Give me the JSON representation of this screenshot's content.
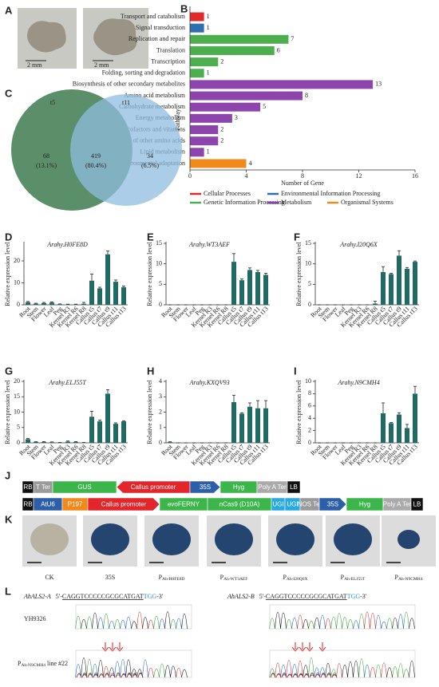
{
  "panel_labels": [
    "A",
    "B",
    "C",
    "D",
    "E",
    "F",
    "G",
    "H",
    "I",
    "J",
    "K",
    "L"
  ],
  "panel_a": {
    "scale_bars": [
      "2 mm",
      "2 mm"
    ]
  },
  "chart_data": [
    {
      "type": "hbar",
      "x_label": "Number of Gene",
      "y_label": "Pathway",
      "categories": [
        "Transport and catabolism",
        "Signal transduction",
        "Replication and repair",
        "Translation",
        "Transcription",
        "Folding, sorting and degradation",
        "Biosynthesis of other secondary metabolites",
        "Amino acid metabolism",
        "Carbohydrate metabolism",
        "Energy metabolism",
        "Metabolism of cofactors and vitamins",
        "Metabolism of other amino acids",
        "Lipid metabolism",
        "Environmental adaptation"
      ],
      "series": [
        {
          "name": "Cellular Processes",
          "color": "#e02a2a",
          "values": [
            1,
            null,
            null,
            null,
            null,
            null,
            null,
            null,
            null,
            null,
            null,
            null,
            null,
            null
          ]
        },
        {
          "name": "Environmental Information Processing",
          "color": "#2e6fad",
          "values": [
            null,
            1,
            null,
            null,
            null,
            null,
            null,
            null,
            null,
            null,
            null,
            null,
            null,
            null
          ]
        },
        {
          "name": "Genetic Information Processing",
          "color": "#4cae4c",
          "values": [
            null,
            null,
            7,
            6,
            2,
            1,
            null,
            null,
            null,
            null,
            null,
            null,
            null,
            null
          ]
        },
        {
          "name": "Metabolism",
          "color": "#8e44ad",
          "values": [
            null,
            null,
            null,
            null,
            null,
            null,
            13,
            8,
            5,
            3,
            2,
            2,
            1,
            null
          ]
        },
        {
          "name": "Organismal Systems",
          "color": "#f08a1c",
          "values": [
            null,
            null,
            null,
            null,
            null,
            null,
            null,
            null,
            null,
            null,
            null,
            null,
            null,
            4
          ]
        }
      ],
      "xlim": [
        0,
        16
      ],
      "xticks": [
        0,
        4,
        8,
        12,
        16
      ]
    },
    {
      "type": "venn",
      "sets": [
        "t5",
        "t11"
      ],
      "counts": [
        68,
        419,
        34
      ],
      "percentage_labels": [
        "(13.1%)",
        "(80.4%)",
        "(6.5%)"
      ],
      "colors": [
        "#5b8f6a",
        "#8fbce0"
      ]
    },
    {
      "type": "bar",
      "title": "Arahy.H0FE8D",
      "y_label": "Relative expression level",
      "color": "#1f6b64",
      "categories": [
        "Root",
        "Stem",
        "Flower",
        "Leaf",
        "Peg",
        "Kernel R3",
        "Kernel R6",
        "Kernel R8",
        "Callus t5",
        "Callus t7",
        "Callus t9",
        "Callus t11",
        "Callus t13"
      ],
      "values": [
        1.2,
        0.5,
        0.8,
        1.0,
        0.3,
        0.2,
        0.2,
        0.5,
        11,
        7.5,
        23,
        10.5,
        8
      ],
      "errors": [
        0.3,
        0.2,
        0.3,
        0.3,
        0.1,
        0.1,
        0.1,
        0.6,
        3,
        0.5,
        1.5,
        0.8,
        0.5
      ],
      "ylim": [
        0,
        28
      ],
      "yticks": [
        0,
        10,
        20
      ]
    },
    {
      "type": "bar",
      "title": "Arahy.WT3AEF",
      "y_label": "Relative expression level",
      "color": "#1f6b64",
      "categories": [
        "Root",
        "Stem",
        "Flower",
        "Leaf",
        "Peg",
        "Kernel R3",
        "Kernel R6",
        "Kernel R8",
        "Callus t5",
        "Callus t7",
        "Callus t9",
        "Callus t11",
        "Callus t13"
      ],
      "values": [
        0,
        0,
        0,
        0,
        0,
        0,
        0,
        0,
        10.5,
        6,
        8.5,
        8,
        7.3
      ],
      "errors": [
        0,
        0,
        0,
        0,
        0,
        0,
        0,
        0,
        2,
        0.3,
        0.5,
        0.4,
        0.4
      ],
      "ylim": [
        0,
        15
      ],
      "yticks": [
        0,
        5,
        10,
        15
      ]
    },
    {
      "type": "bar",
      "title": "Arahy.I20Q6X",
      "y_label": "Relative expression level",
      "color": "#1f6b64",
      "categories": [
        "Root",
        "Stem",
        "Flower",
        "Leaf",
        "Peg",
        "Kernel R3",
        "Kernel R6",
        "Kernel R8",
        "Callus t5",
        "Callus t7",
        "Callus t9",
        "Callus t11",
        "Callus t13"
      ],
      "values": [
        0,
        0,
        0,
        0,
        0,
        0,
        0,
        0.3,
        8,
        7.5,
        12,
        8.8,
        10.5
      ],
      "errors": [
        0,
        0,
        0,
        0,
        0,
        0,
        0,
        0.6,
        1.3,
        0.2,
        1.2,
        0.3,
        0.2
      ],
      "ylim": [
        0,
        15
      ],
      "yticks": [
        0,
        5,
        10,
        15
      ]
    },
    {
      "type": "bar",
      "title": "Arahy.ELJ55T",
      "y_label": "Relative expression level",
      "color": "#1f6b64",
      "categories": [
        "Root",
        "Stem",
        "Flower",
        "Leaf",
        "Peg",
        "Kernel R3",
        "Kernel R6",
        "Kernel R8",
        "Callus t5",
        "Callus t7",
        "Callus t9",
        "Callus t11",
        "Callus t13"
      ],
      "values": [
        1.2,
        0.3,
        0.3,
        0.2,
        0.1,
        0.4,
        0.3,
        0.1,
        8.5,
        7,
        16,
        6.2,
        7
      ],
      "errors": [
        0.2,
        0.1,
        0.1,
        0.1,
        0.05,
        0.2,
        0.1,
        0.05,
        1.8,
        0.4,
        1.3,
        0.3,
        0.2
      ],
      "ylim": [
        0,
        20
      ],
      "yticks": [
        0,
        5,
        10,
        15,
        20
      ]
    },
    {
      "type": "bar",
      "title": "Arahy.KXQV93",
      "y_label": "Relative expression level",
      "color": "#1f6b64",
      "categories": [
        "Root",
        "Stem",
        "Flower",
        "Leaf",
        "Peg",
        "Kernel R3",
        "Kernel R6",
        "Kernel R8",
        "Callus t5",
        "Callus t7",
        "Callus t9",
        "Callus t11",
        "Callus t13"
      ],
      "values": [
        0.05,
        0,
        0,
        0,
        0,
        0,
        0,
        0,
        2.65,
        1.9,
        2.35,
        2.25,
        2.25
      ],
      "errors": [
        0.02,
        0,
        0,
        0,
        0,
        0,
        0,
        0,
        0.45,
        0.05,
        0.25,
        0.5,
        0.5
      ],
      "ylim": [
        0,
        4
      ],
      "yticks": [
        0,
        1,
        2,
        3,
        4
      ]
    },
    {
      "type": "bar",
      "title": "Arahy.N9CMH4",
      "y_label": "Relative expression level",
      "color": "#1f6b64",
      "categories": [
        "Root",
        "Stem",
        "Flower",
        "Leaf",
        "Peg",
        "Kernel R3",
        "Kernel R6",
        "Kernel R8",
        "Callus t5",
        "Callus t7",
        "Callus t9",
        "Callus t11",
        "Callus t13"
      ],
      "values": [
        0,
        0,
        0,
        0,
        0,
        0,
        0,
        0,
        4.8,
        3.2,
        4.6,
        2.4,
        8
      ],
      "errors": [
        0,
        0,
        0,
        0,
        0,
        0,
        0,
        0,
        1.7,
        0.1,
        0.3,
        0.6,
        1.2
      ],
      "ylim": [
        0,
        10
      ],
      "yticks": [
        0,
        2,
        4,
        6,
        8,
        10
      ]
    }
  ],
  "panel_j": {
    "construct_1": [
      "RB",
      "T Ter",
      "GUS",
      "Callus promoter",
      "35S",
      "Hyg",
      "Poly A Ter",
      "LB"
    ],
    "construct_2": [
      "RB",
      "AtU6",
      "P197",
      "Callus promoter",
      "evoFERNY",
      "nCas9 (D10A)",
      "UGI",
      "UGI",
      "NOS Ter",
      "35S",
      "Hyg",
      "Poly A Ter",
      "LB"
    ]
  },
  "panel_k": {
    "samples": [
      {
        "main": "CK",
        "sub": ""
      },
      {
        "main": "35S",
        "sub": ""
      },
      {
        "main": "P",
        "sub": "Ah-H0FE8D"
      },
      {
        "main": "P",
        "sub": "Ah-WT3AEF"
      },
      {
        "main": "P",
        "sub": "Ah-I20Q6X"
      },
      {
        "main": "P",
        "sub": "Ah-ELJ55T"
      },
      {
        "main": "P",
        "sub": "Ah-N9CMH4"
      }
    ]
  },
  "panel_l": {
    "targets": [
      {
        "gene": "AhALS2-A",
        "prefix": "5'-",
        "target": "CAGGTCCCCCGCGCATGAT",
        "pam": "TGG",
        "suffix": "-3'"
      },
      {
        "gene": "AhALS2-B",
        "prefix": "5'-",
        "target": "CAGGTCCCCCGCGCATGAT",
        "pam": "TGG",
        "suffix": "-3'"
      }
    ],
    "wild_type": "YH9326",
    "mutant": {
      "main": "P",
      "sub": "Ah-N9CMH4",
      "suffix": " line #22"
    }
  }
}
